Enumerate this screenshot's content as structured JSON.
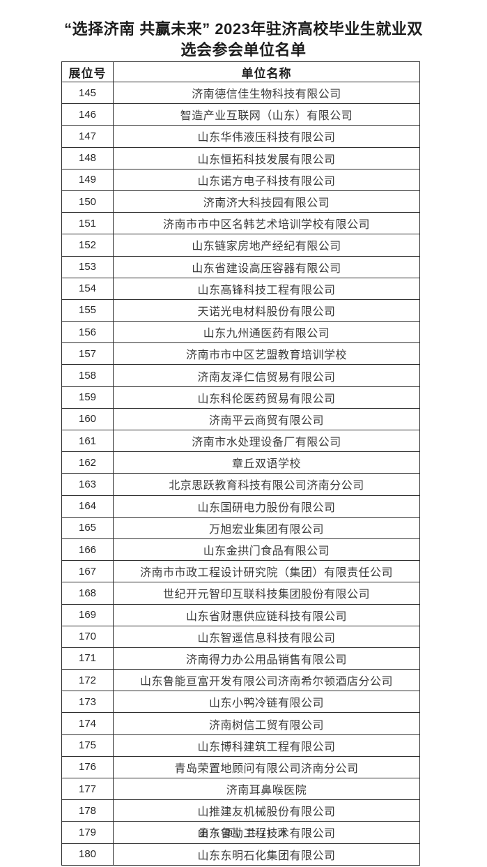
{
  "page": {
    "title_line1": "“选择济南 共赢未来” 2023年驻济高校毕业生就业双",
    "title_line2": "选会参会单位名单",
    "footer": "第 5 页，共 11 页"
  },
  "table": {
    "headers": [
      "展位号",
      "单位名称"
    ],
    "rows": [
      [
        "145",
        "济南德信佳生物科技有限公司"
      ],
      [
        "146",
        "智造产业互联网（山东）有限公司"
      ],
      [
        "147",
        "山东华伟液压科技有限公司"
      ],
      [
        "148",
        "山东恒拓科技发展有限公司"
      ],
      [
        "149",
        "山东诺方电子科技有限公司"
      ],
      [
        "150",
        "济南济大科技园有限公司"
      ],
      [
        "151",
        "济南市市中区名韩艺术培训学校有限公司"
      ],
      [
        "152",
        "山东链家房地产经纪有限公司"
      ],
      [
        "153",
        "山东省建设高压容器有限公司"
      ],
      [
        "154",
        "山东高锋科技工程有限公司"
      ],
      [
        "155",
        "天诺光电材料股份有限公司"
      ],
      [
        "156",
        "山东九州通医药有限公司"
      ],
      [
        "157",
        "济南市市中区艺盟教育培训学校"
      ],
      [
        "158",
        "济南友泽仁信贸易有限公司"
      ],
      [
        "159",
        "山东科伦医药贸易有限公司"
      ],
      [
        "160",
        "济南平云商贸有限公司"
      ],
      [
        "161",
        "济南市水处理设备厂有限公司"
      ],
      [
        "162",
        "章丘双语学校"
      ],
      [
        "163",
        "北京思跃教育科技有限公司济南分公司"
      ],
      [
        "164",
        "山东国研电力股份有限公司"
      ],
      [
        "165",
        "万旭宏业集团有限公司"
      ],
      [
        "166",
        "山东金拱门食品有限公司"
      ],
      [
        "167",
        "济南市市政工程设计研究院（集团）有限责任公司"
      ],
      [
        "168",
        "世纪开元智印互联科技集团股份有限公司"
      ],
      [
        "169",
        "山东省财惠供应链科技有限公司"
      ],
      [
        "170",
        "山东智遥信息科技有限公司"
      ],
      [
        "171",
        "济南得力办公用品销售有限公司"
      ],
      [
        "172",
        "山东鲁能亘富开发有限公司济南希尔顿酒店分公司"
      ],
      [
        "173",
        "山东小鸭冷链有限公司"
      ],
      [
        "174",
        "济南树信工贸有限公司"
      ],
      [
        "175",
        "山东博科建筑工程有限公司"
      ],
      [
        "176",
        "青岛荣置地顾问有限公司济南分公司"
      ],
      [
        "177",
        "济南耳鼻喉医院"
      ],
      [
        "178",
        "山推建友机械股份有限公司"
      ],
      [
        "179",
        "山东鲁勘工程技术有限公司"
      ],
      [
        "180",
        "山东东明石化集团有限公司"
      ]
    ]
  }
}
